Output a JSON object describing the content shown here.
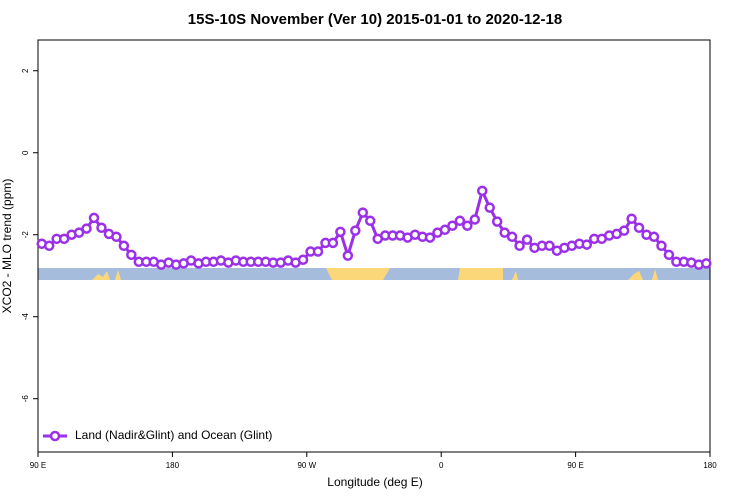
{
  "chart_data": {
    "type": "line",
    "title": "15S-10S November (Ver 10)   2015-01-01 to 2020-12-18",
    "x_label": "Longitude (deg E)",
    "y_label": "XCO2 - MLO trend (ppm)",
    "xlim": [
      90,
      540
    ],
    "xticks": [
      {
        "value": 90,
        "label": "90 E"
      },
      180,
      {
        "value": 270,
        "label": "90 W"
      },
      {
        "value": 360,
        "label": "0"
      },
      {
        "value": 450,
        "label": "90 E"
      },
      {
        "value": 540,
        "label": "180"
      }
    ],
    "ylim": [
      -7.3,
      2.75
    ],
    "yticks": [
      2,
      0,
      -2,
      -4,
      -6
    ],
    "legend": "bottom-left",
    "x": [
      92.5,
      97.5,
      102.5,
      107.5,
      112.5,
      117.5,
      122.5,
      127.5,
      132.5,
      137.5,
      142.5,
      147.5,
      152.5,
      157.5,
      162.5,
      167.5,
      172.5,
      177.5,
      182.5,
      187.5,
      192.5,
      197.5,
      202.5,
      207.5,
      212.5,
      217.5,
      222.5,
      227.5,
      232.5,
      237.5,
      242.5,
      247.5,
      252.5,
      257.5,
      262.5,
      267.5,
      272.5,
      277.5,
      282.5,
      287.5,
      292.5,
      297.5,
      302.5,
      307.5,
      312.5,
      317.5,
      322.5,
      327.5,
      332.5,
      337.5,
      342.5,
      347.5,
      352.5,
      357.5,
      362.5,
      367.5,
      372.5,
      377.5,
      382.5,
      387.5,
      392.5,
      397.5,
      402.5,
      407.5,
      412.5,
      417.5,
      422.5,
      427.5,
      432.5,
      437.5,
      442.5,
      447.5,
      452.5,
      457.5,
      462.5,
      467.5,
      472.5,
      477.5,
      482.5,
      487.5,
      492.5,
      497.5,
      502.5,
      507.5,
      512.5,
      517.5,
      522.5,
      527.5,
      532.5,
      537.5
    ],
    "series": [
      {
        "name": "Land (Nadir&Glint) and Ocean (Glint)",
        "color": "#9b30e8",
        "values": [
          -2.22,
          -2.27,
          -2.1,
          -2.1,
          -2.0,
          -1.95,
          -1.85,
          -1.59,
          -1.83,
          -1.98,
          -2.05,
          -2.27,
          -2.49,
          -2.66,
          -2.66,
          -2.66,
          -2.73,
          -2.68,
          -2.73,
          -2.7,
          -2.63,
          -2.7,
          -2.66,
          -2.66,
          -2.63,
          -2.68,
          -2.63,
          -2.66,
          -2.66,
          -2.66,
          -2.66,
          -2.68,
          -2.68,
          -2.63,
          -2.68,
          -2.61,
          -2.41,
          -2.41,
          -2.2,
          -2.2,
          -1.93,
          -2.51,
          -1.9,
          -1.46,
          -1.66,
          -2.1,
          -2.02,
          -2.02,
          -2.02,
          -2.07,
          -2.0,
          -2.05,
          -2.07,
          -1.95,
          -1.88,
          -1.78,
          -1.66,
          -1.78,
          -1.63,
          -0.93,
          -1.34,
          -1.68,
          -1.95,
          -2.05,
          -2.27,
          -2.12,
          -2.32,
          -2.27,
          -2.27,
          -2.39,
          -2.32,
          -2.27,
          -2.22,
          -2.24,
          -2.1,
          -2.1,
          -2.02,
          -1.98,
          -1.9,
          -1.61,
          -1.83,
          -2.0,
          -2.05,
          -2.27,
          -2.49,
          -2.66,
          -2.66,
          -2.68,
          -2.73,
          -2.7
        ]
      }
    ]
  }
}
